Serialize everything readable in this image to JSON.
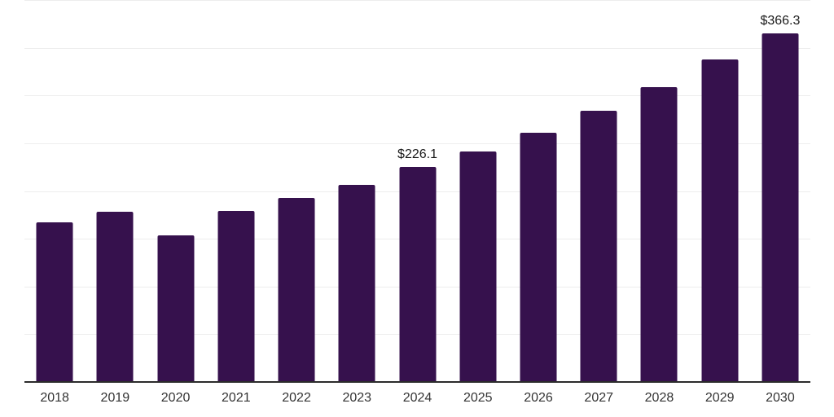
{
  "chart_data": {
    "type": "bar",
    "title": "",
    "xlabel": "",
    "ylabel": "",
    "categories": [
      "2018",
      "2019",
      "2020",
      "2021",
      "2022",
      "2023",
      "2024",
      "2025",
      "2026",
      "2027",
      "2028",
      "2029",
      "2030"
    ],
    "values": [
      168.0,
      179.0,
      154.0,
      180.0,
      193.5,
      207.3,
      226.1,
      242.0,
      262.0,
      285.0,
      309.5,
      338.5,
      366.3
    ],
    "data_labels": {
      "2024": "$226.1",
      "2030": "$366.3"
    },
    "ylim": [
      0,
      400
    ],
    "grid_step": 50,
    "grid_on": true,
    "legend_position": "none",
    "y_axis_labels_visible": false,
    "colors": {
      "bar": "#36114d",
      "gridline": "#ededed",
      "axis": "#2b2b2b",
      "x_label": "#333333",
      "data_label": "#1a1a1a",
      "background": "#ffffff"
    }
  }
}
